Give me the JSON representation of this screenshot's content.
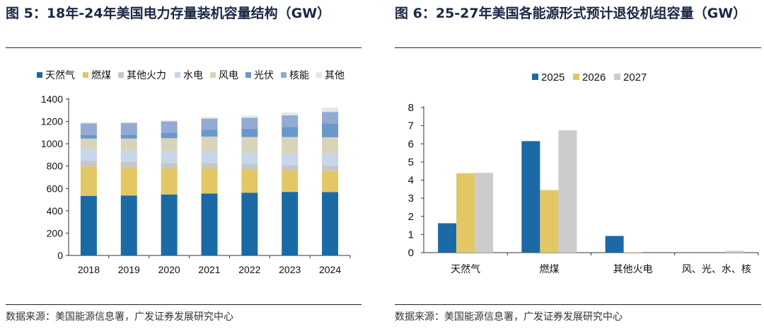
{
  "left": {
    "title": "图 5：18年-24年美国电力存量装机容量结构（GW）",
    "source": "数据来源：美国能源信息署，广发证券发展研究中心"
  },
  "right": {
    "title_line1": "图 6：25-27年美国各能源形式预计退役机组容量",
    "title_line2": "（GW）",
    "source": "数据来源：美国能源信息署，广发证券发展研究中心"
  },
  "chart_data": [
    {
      "type": "bar",
      "stacked": true,
      "title": "18年-24年美国电力存量装机容量结构（GW）",
      "ylim": [
        0,
        1400
      ],
      "yticks": [
        0,
        200,
        400,
        600,
        800,
        1000,
        1200,
        1400
      ],
      "legend": "top",
      "categories": [
        "2018",
        "2019",
        "2020",
        "2021",
        "2022",
        "2023",
        "2024"
      ],
      "series": [
        {
          "name": "天然气",
          "color": "#1b6aa5",
          "values": [
            533,
            537,
            546,
            554,
            562,
            569,
            567
          ]
        },
        {
          "name": "燃煤",
          "color": "#e3c764",
          "values": [
            263,
            248,
            233,
            225,
            205,
            191,
            189
          ]
        },
        {
          "name": "其他火力",
          "color": "#c6c6c6",
          "values": [
            52,
            52,
            50,
            50,
            50,
            50,
            48
          ]
        },
        {
          "name": "水电",
          "color": "#c7d6ea",
          "values": [
            106,
            105,
            104,
            102,
            104,
            100,
            102
          ]
        },
        {
          "name": "风电",
          "color": "#d8d4bb",
          "values": [
            92,
            104,
            117,
            133,
            139,
            150,
            152
          ]
        },
        {
          "name": "光伏",
          "color": "#6a98cb",
          "values": [
            33,
            35,
            50,
            61,
            75,
            90,
            125
          ]
        },
        {
          "name": "核能",
          "color": "#93aad2",
          "values": [
            104,
            104,
            100,
            100,
            98,
            104,
            102
          ]
        },
        {
          "name": "其他",
          "color": "#e6e6e6",
          "values": [
            9,
            11,
            10,
            14,
            19,
            27,
            38
          ]
        }
      ]
    },
    {
      "type": "bar",
      "title": "25-27年美国各能源形式预计退役机组容量（GW）",
      "ylim": [
        0,
        8
      ],
      "yticks": [
        0,
        1,
        2,
        3,
        4,
        5,
        6,
        7,
        8
      ],
      "legend": "top",
      "categories": [
        "天然气",
        "燃煤",
        "其他火电",
        "风、光、水、核"
      ],
      "series": [
        {
          "name": "2025",
          "color": "#1b6aa5",
          "values": [
            1.62,
            6.15,
            0.92,
            0
          ]
        },
        {
          "name": "2026",
          "color": "#e3c764",
          "values": [
            4.38,
            3.45,
            0.02,
            0
          ]
        },
        {
          "name": "2027",
          "color": "#cccccc",
          "values": [
            4.4,
            6.75,
            0,
            0.1
          ]
        }
      ]
    }
  ]
}
